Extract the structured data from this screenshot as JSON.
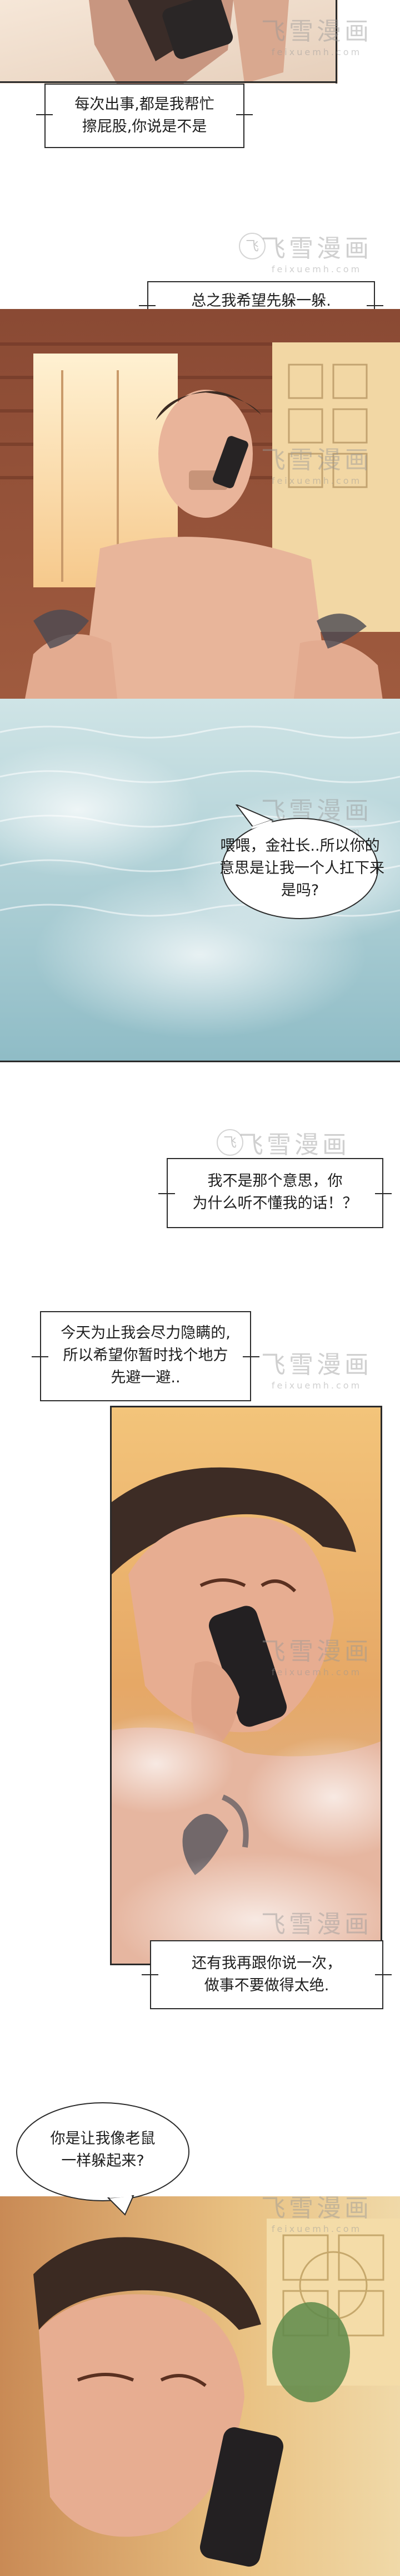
{
  "captions": [
    {
      "lines": [
        "每次出事,都是我帮忙",
        "擦屁股,你说是不是"
      ]
    },
    {
      "lines": [
        "总之我希望先躲一躲."
      ]
    },
    {
      "lines": [
        "我不是那个意思，你",
        "为什么听不懂我的话！？"
      ]
    },
    {
      "lines": [
        "今天为止我会尽力隐瞒的,",
        "所以希望你暂时找个地方",
        "先避一避.."
      ]
    },
    {
      "lines": [
        "还有我再跟你说一次，",
        "做事不要做得太绝."
      ]
    }
  ],
  "bubbles": [
    {
      "lines": [
        "喂喂，金社长..所以你的",
        "意思是让我一个人扛下来",
        "是吗?"
      ]
    },
    {
      "lines": [
        "你是让我像老鼠",
        "一样躲起来?"
      ]
    }
  ],
  "watermark": {
    "cn": "飞雪漫画",
    "en": "feixuemh.com",
    "seal": "飞"
  },
  "colors": {
    "ink": "#1e1e1e",
    "border": "#2b2b2b",
    "skin": "#e8b59a",
    "water": "#9ec8d0"
  }
}
